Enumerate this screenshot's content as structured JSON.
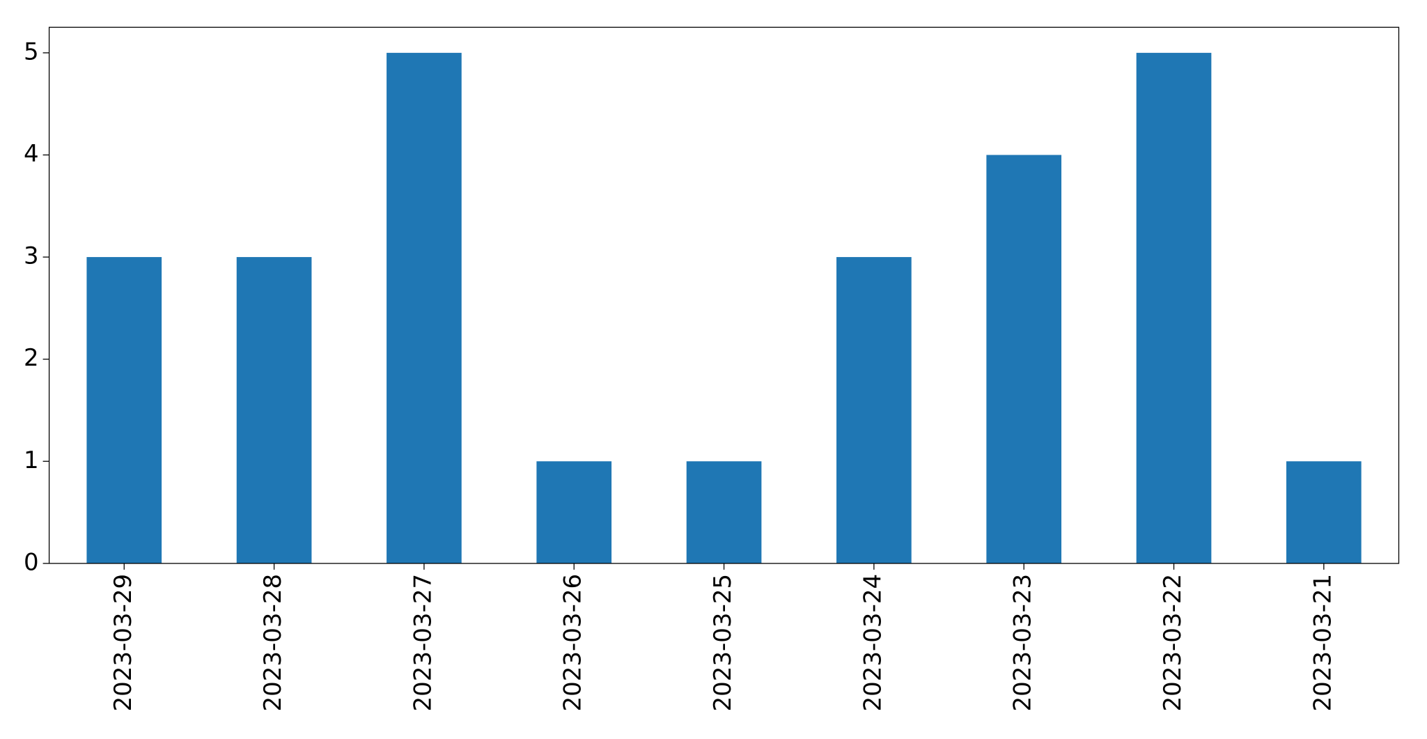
{
  "chart_data": {
    "type": "bar",
    "categories": [
      "2023-03-29",
      "2023-03-28",
      "2023-03-27",
      "2023-03-26",
      "2023-03-25",
      "2023-03-24",
      "2023-03-23",
      "2023-03-22",
      "2023-03-21"
    ],
    "values": [
      3,
      3,
      5,
      1,
      1,
      3,
      4,
      5,
      1
    ],
    "color": "#1f77b4",
    "ylim": [
      0,
      5.25
    ],
    "yticks": [
      0,
      1,
      2,
      3,
      4,
      5
    ],
    "grid": false
  }
}
